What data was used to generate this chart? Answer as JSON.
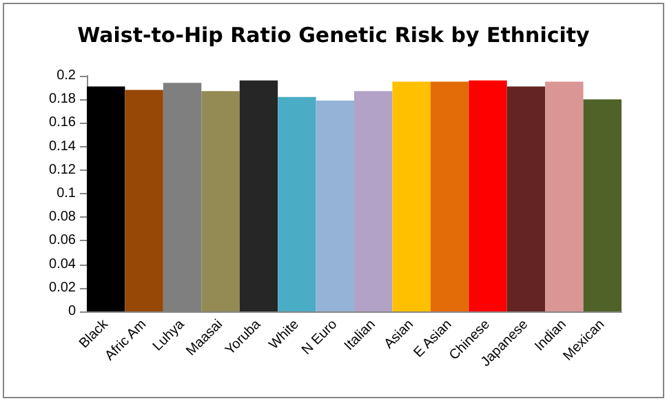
{
  "chart_data": {
    "type": "bar",
    "title": "Waist-to-Hip Ratio Genetic Risk by Ethnicity",
    "categories": [
      "Black",
      "Afric Am",
      "Luhya",
      "Maasai",
      "Yoruba",
      "White",
      "N Euro",
      "Italian",
      "Asian",
      "E Asian",
      "Chinese",
      "Japanese",
      "Indian",
      "Mexican"
    ],
    "values": [
      0.191,
      0.188,
      0.194,
      0.187,
      0.196,
      0.182,
      0.179,
      0.187,
      0.195,
      0.195,
      0.196,
      0.191,
      0.195,
      0.18
    ],
    "colors": [
      "#000000",
      "#974706",
      "#7f7f7f",
      "#948a54",
      "#262626",
      "#4bacc6",
      "#95b3d7",
      "#b2a2c7",
      "#ffc000",
      "#e36c09",
      "#ff0000",
      "#632523",
      "#d99694",
      "#4f6228"
    ],
    "ylim": [
      0,
      0.2
    ],
    "yticks": [
      0,
      0.02,
      0.04,
      0.06,
      0.08,
      0.1,
      0.12,
      0.14,
      0.16,
      0.18,
      0.2
    ],
    "grid": false
  }
}
